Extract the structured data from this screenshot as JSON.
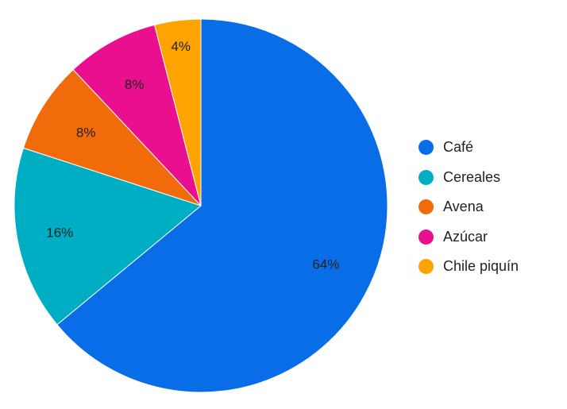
{
  "chart_data": {
    "type": "pie",
    "slices": [
      {
        "label": "Café",
        "value": 64,
        "display": "64%",
        "color": "#0a6de8"
      },
      {
        "label": "Cereales",
        "value": 16,
        "display": "16%",
        "color": "#00aec4"
      },
      {
        "label": "Avena",
        "value": 8,
        "display": "8%",
        "color": "#f26b0a"
      },
      {
        "label": "Azúcar",
        "value": 8,
        "display": "8%",
        "color": "#ea0f8e"
      },
      {
        "label": "Chile piquín",
        "value": 4,
        "display": "4%",
        "color": "#ffa300"
      }
    ],
    "start_angle": "12 o'clock",
    "direction": "clockwise",
    "legend_position": "right"
  }
}
